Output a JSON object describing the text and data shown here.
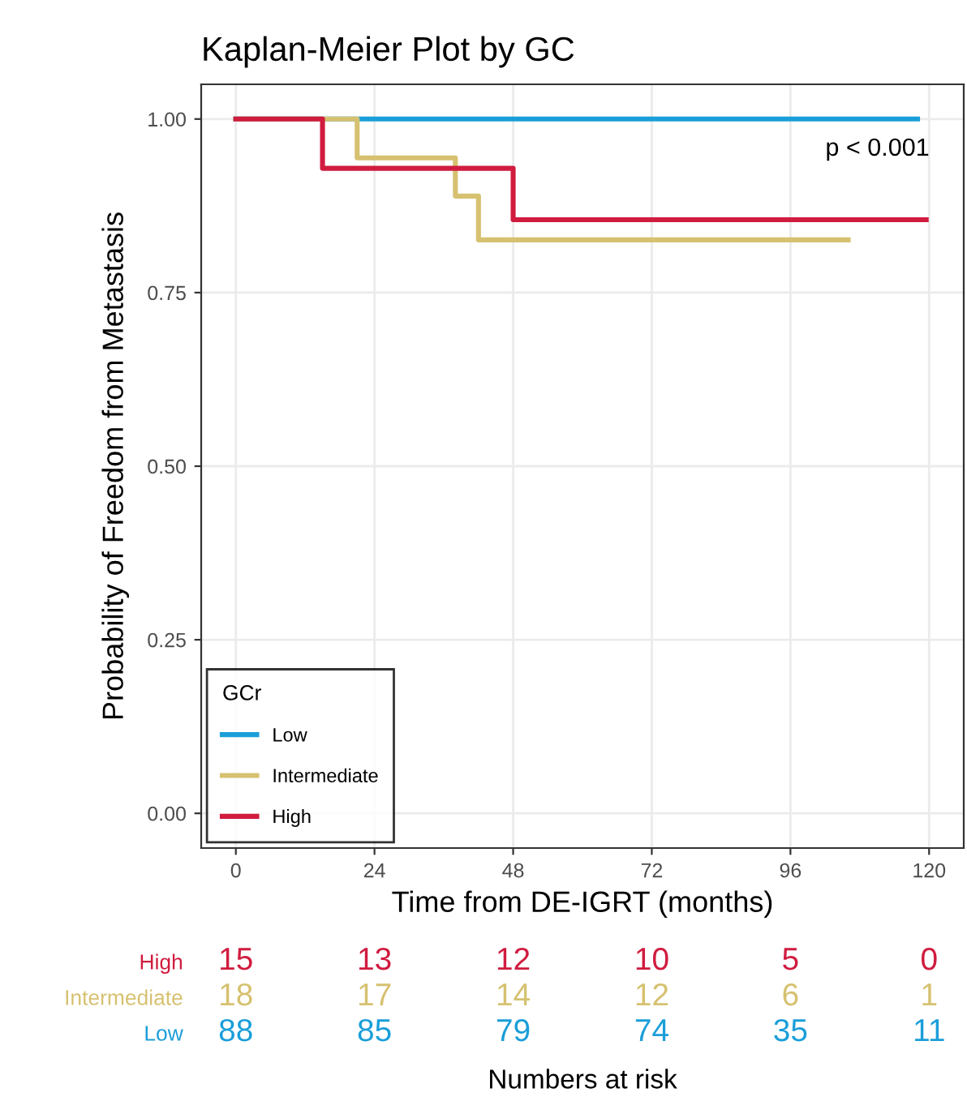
{
  "chart_data": [
    {
      "type": "step",
      "title": "Kaplan-Meier Plot by GC",
      "xlabel": "Time from DE-IGRT (months)",
      "ylabel": "Probability of Freedom from Metastasis",
      "legend_title": "GCr",
      "legend": "bottom left",
      "grid": true,
      "xlim": [
        -6,
        126
      ],
      "xticks": [
        0,
        24,
        48,
        72,
        96,
        120
      ],
      "ylim": [
        -0.05,
        1.05
      ],
      "yticks": [
        {
          "value": 0,
          "label": "0.00"
        },
        {
          "value": 0.25,
          "label": "0.25"
        },
        {
          "value": 0.5,
          "label": "0.50"
        },
        {
          "value": 0.75,
          "label": "0.75"
        },
        {
          "value": 1,
          "label": "1.00"
        }
      ],
      "annotations": [
        "p < 0.001"
      ],
      "series": [
        {
          "name": "Low",
          "color": "#1a9ed9",
          "x": [
            0,
            118
          ],
          "values": [
            1,
            1
          ]
        },
        {
          "name": "Intermediate",
          "color": "#d6c170",
          "x": [
            0,
            21,
            38,
            42,
            106
          ],
          "values": [
            1,
            0.944,
            0.889,
            0.826,
            0.826
          ]
        },
        {
          "name": "High",
          "color": "#d01c3f",
          "x": [
            0,
            15,
            48,
            119.5
          ],
          "values": [
            1,
            0.929,
            0.855,
            0.855
          ]
        }
      ]
    },
    {
      "type": "other",
      "xlabel": "Numbers at risk",
      "y_categories": [
        "High",
        "Intermediate",
        "Low"
      ],
      "colors": [
        "#d01c3f",
        "#d6c170",
        "#1a9ed9"
      ],
      "cell_labels": [
        [
          "15",
          "13",
          "12",
          "10",
          "5",
          "0"
        ],
        [
          "18",
          "17",
          "14",
          "12",
          "6",
          "1"
        ],
        [
          "88",
          "85",
          "79",
          "74",
          "35",
          "11"
        ]
      ]
    }
  ]
}
